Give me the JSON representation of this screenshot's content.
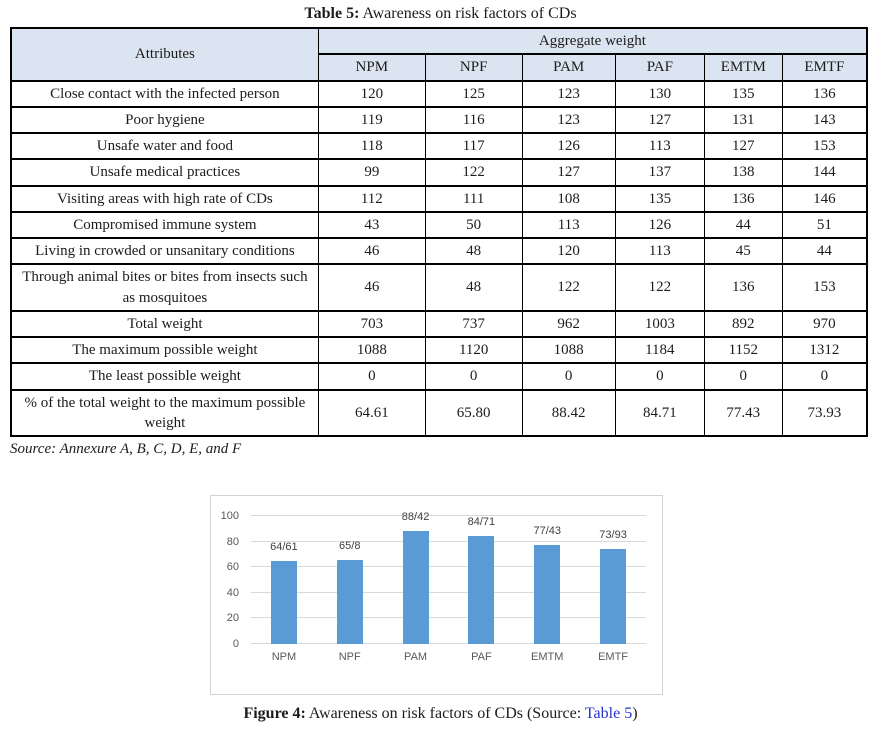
{
  "title": {
    "prefix": "Table 5:",
    "rest": " Awareness on risk factors of CDs"
  },
  "table": {
    "attributes_header": "Attributes",
    "group_header": "Aggregate weight",
    "columns": [
      "NPM",
      "NPF",
      "PAM",
      "PAF",
      "EMTM",
      "EMTF"
    ],
    "rows": [
      {
        "label": "Close contact with the infected person",
        "values": [
          "120",
          "125",
          "123",
          "130",
          "135",
          "136"
        ]
      },
      {
        "label": "Poor hygiene",
        "values": [
          "119",
          "116",
          "123",
          "127",
          "131",
          "143"
        ]
      },
      {
        "label": "Unsafe water and food",
        "values": [
          "118",
          "117",
          "126",
          "113",
          "127",
          "153"
        ]
      },
      {
        "label": "Unsafe medical practices",
        "values": [
          "99",
          "122",
          "127",
          "137",
          "138",
          "144"
        ]
      },
      {
        "label": "Visiting areas with high rate of CDs",
        "values": [
          "112",
          "111",
          "108",
          "135",
          "136",
          "146"
        ]
      },
      {
        "label": "Compromised immune system",
        "values": [
          "43",
          "50",
          "113",
          "126",
          "44",
          "51"
        ]
      },
      {
        "label": "Living in crowded or unsanitary conditions",
        "values": [
          "46",
          "48",
          "120",
          "113",
          "45",
          "44"
        ]
      },
      {
        "label": "Through animal bites or bites from insects such as mosquitoes",
        "values": [
          "46",
          "48",
          "122",
          "122",
          "136",
          "153"
        ]
      },
      {
        "label": "Total weight",
        "values": [
          "703",
          "737",
          "962",
          "1003",
          "892",
          "970"
        ]
      },
      {
        "label": "The maximum possible weight",
        "values": [
          "1088",
          "1120",
          "1088",
          "1184",
          "1152",
          "1312"
        ]
      },
      {
        "label": "The least possible weight",
        "values": [
          "0",
          "0",
          "0",
          "0",
          "0",
          "0"
        ]
      },
      {
        "label": "% of the total weight to the maximum possible weight",
        "values": [
          "64.61",
          "65.80",
          "88.42",
          "84.71",
          "77.43",
          "73.93"
        ]
      }
    ]
  },
  "source_note": "Source: Annexure A, B, C, D, E, and F",
  "chart_data": {
    "type": "bar",
    "categories": [
      "NPM",
      "NPF",
      "PAM",
      "PAF",
      "EMTM",
      "EMTF"
    ],
    "values": [
      64.61,
      65.8,
      88.42,
      84.71,
      77.43,
      73.93
    ],
    "bar_labels": [
      "64/61",
      "65/8",
      "88/42",
      "84/71",
      "77/43",
      "73/93"
    ],
    "y_ticks": [
      0,
      20,
      40,
      60,
      80,
      100
    ],
    "ylim": [
      0,
      100
    ],
    "title": "",
    "xlabel": "",
    "ylabel": "",
    "grid": true,
    "legend_position": "none",
    "bar_color": "#5b9bd5"
  },
  "caption": {
    "prefix": "Figure 4:",
    "rest": " Awareness on risk factors of CDs (Source: ",
    "link": "Table 5",
    "suffix": ")"
  },
  "colors": {
    "table_header_fill": "#dbe5f1",
    "bar_fill": "#5b9bd5",
    "gridline": "#d9d9d9",
    "axis_text": "#595959",
    "link_blue": "#2733cc"
  }
}
